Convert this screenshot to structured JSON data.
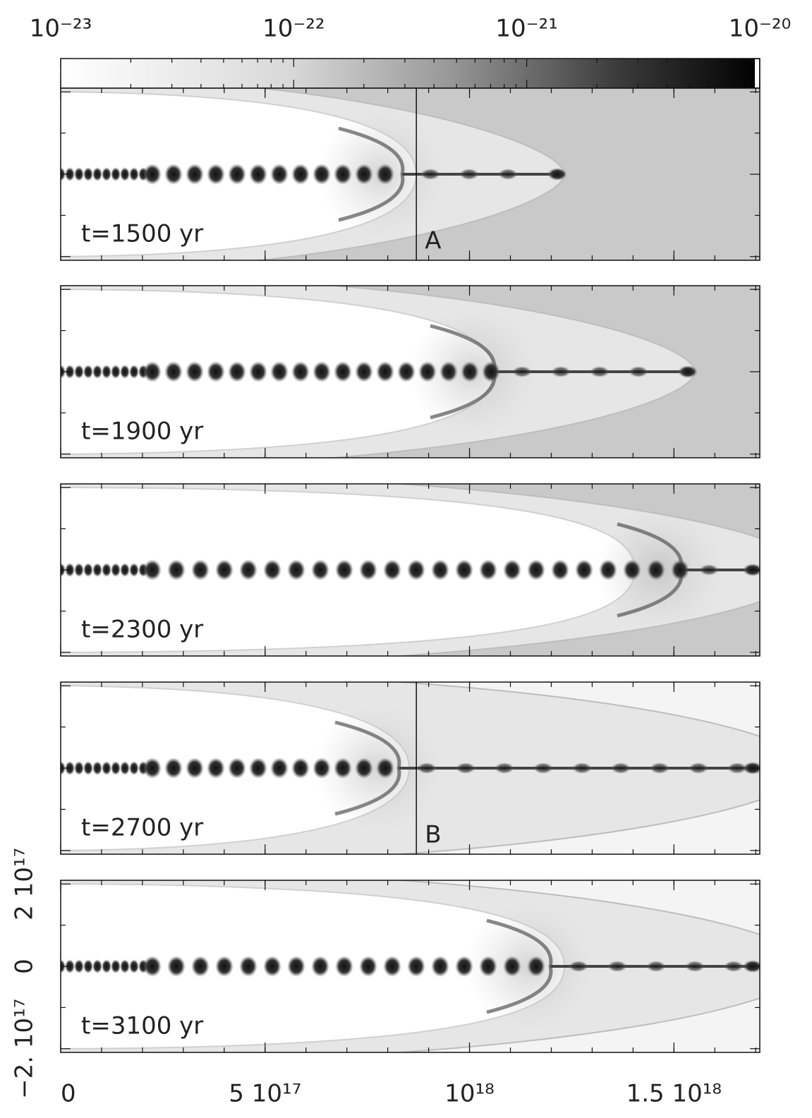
{
  "chart_data": {
    "type": "heatmap",
    "colorbar": {
      "log": true,
      "lim": [
        1e-23,
        1e-20
      ],
      "ticks": [
        {
          "value": 1e-23,
          "label": "10⁻²³"
        },
        {
          "value": 1e-22,
          "label": "10⁻²²"
        },
        {
          "value": 1e-21,
          "label": "10⁻²¹"
        },
        {
          "value": 1e-20,
          "label": "10⁻²⁰"
        }
      ]
    },
    "xlim": [
      0,
      1.71e+18
    ],
    "xticks": [
      0,
      {
        "value": 5e+17,
        "label": "5 10¹⁷"
      },
      {
        "value": 1e+18,
        "label": "10¹⁸"
      },
      {
        "value": 1.5e+18,
        "label": "1.5 10¹⁸"
      }
    ],
    "ylim": [
      -2.09e+17,
      2.09e+17
    ],
    "yticks": [
      {
        "value": -2e+17,
        "label": "−2. 10¹⁷"
      },
      0,
      {
        "value": 2e+17,
        "label": "2 10¹⁷"
      }
    ],
    "panels": [
      {
        "label": "t=1500 yr",
        "marker": {
          "label": "A",
          "x": 8.7e+17
        }
      },
      {
        "label": "t=1900 yr"
      },
      {
        "label": "t=2300 yr"
      },
      {
        "label": "t=2700 yr",
        "marker": {
          "label": "B",
          "x": 8.7e+17
        }
      },
      {
        "label": "t=3100 yr"
      }
    ]
  }
}
